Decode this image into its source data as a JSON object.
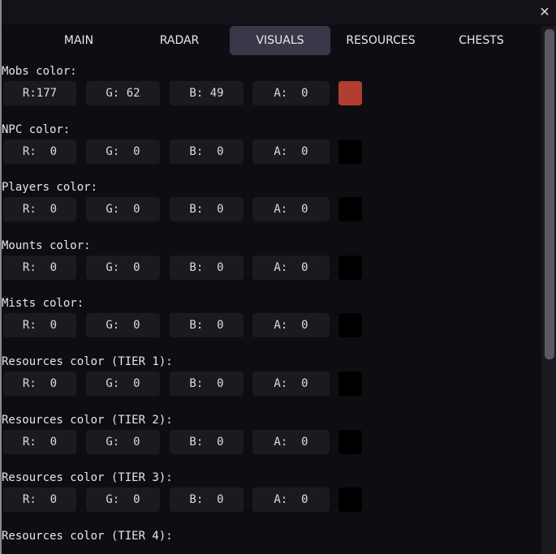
{
  "window": {
    "close_icon": "close-x-icon"
  },
  "tabs": [
    {
      "label": "MAIN",
      "active": false
    },
    {
      "label": "RADAR",
      "active": false
    },
    {
      "label": "VISUALS",
      "active": true
    },
    {
      "label": "RESOURCES",
      "active": false
    },
    {
      "label": "CHESTS",
      "active": false
    }
  ],
  "sections": [
    {
      "label": "Mobs color:",
      "r": "R:177",
      "g": "G: 62",
      "b": "B: 49",
      "a": "A:  0",
      "swatch": "#b13e31"
    },
    {
      "label": "NPC color:",
      "r": "R:  0",
      "g": "G:  0",
      "b": "B:  0",
      "a": "A:  0",
      "swatch": "#000000"
    },
    {
      "label": "Players color:",
      "r": "R:  0",
      "g": "G:  0",
      "b": "B:  0",
      "a": "A:  0",
      "swatch": "#000000"
    },
    {
      "label": "Mounts color:",
      "r": "R:  0",
      "g": "G:  0",
      "b": "B:  0",
      "a": "A:  0",
      "swatch": "#000000"
    },
    {
      "label": "Mists color:",
      "r": "R:  0",
      "g": "G:  0",
      "b": "B:  0",
      "a": "A:  0",
      "swatch": "#000000"
    },
    {
      "label": "Resources color (TIER 1):",
      "r": "R:  0",
      "g": "G:  0",
      "b": "B:  0",
      "a": "A:  0",
      "swatch": "#000000"
    },
    {
      "label": "Resources color (TIER 2):",
      "r": "R:  0",
      "g": "G:  0",
      "b": "B:  0",
      "a": "A:  0",
      "swatch": "#000000"
    },
    {
      "label": "Resources color (TIER 3):",
      "r": "R:  0",
      "g": "G:  0",
      "b": "B:  0",
      "a": "A:  0",
      "swatch": "#000000"
    },
    {
      "label": "Resources color (TIER 4):"
    }
  ],
  "colors": {
    "active_tab": "#3a3848",
    "background": "#0f0d11",
    "field": "#1b1a21"
  }
}
